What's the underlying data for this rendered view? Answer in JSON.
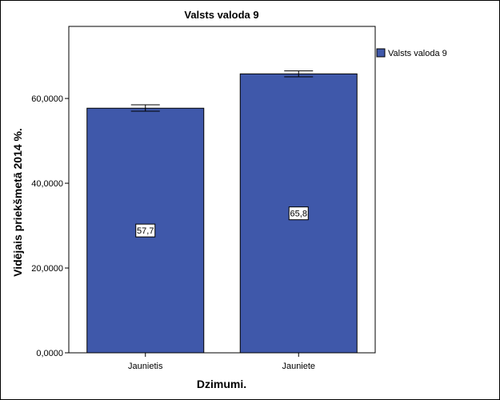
{
  "chart_data": {
    "type": "bar",
    "title": "Valsts valoda 9",
    "xlabel": "Dzimumi.",
    "ylabel": "Vidējais priekšmetā 2014 %.",
    "categories": [
      "Jaunietis",
      "Jauniete"
    ],
    "series": [
      {
        "name": "Valsts valoda 9",
        "values": [
          57.7,
          65.8
        ],
        "error_low": [
          57.0,
          65.1
        ],
        "error_high": [
          58.5,
          66.5
        ],
        "data_labels": [
          "57,7",
          "65,8"
        ],
        "color": "#3f58aa"
      }
    ],
    "ylim": [
      0,
      77
    ],
    "yticks": [
      0,
      20,
      40,
      60
    ],
    "ytick_labels": [
      "0,0000",
      "20,0000",
      "40,0000",
      "60,0000"
    ],
    "grid": false,
    "legend_position": "right"
  }
}
